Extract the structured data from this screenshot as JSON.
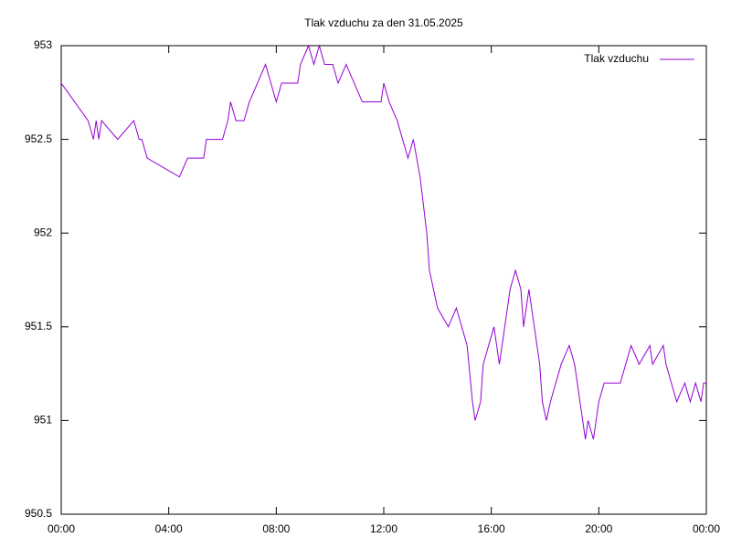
{
  "chart_data": {
    "type": "line",
    "title": "Tlak vzduchu za den 31.05.2025",
    "x": [
      0,
      0.5,
      1.0,
      1.2,
      1.3,
      1.4,
      1.5,
      2.1,
      2.7,
      2.9,
      3.0,
      3.2,
      4.4,
      4.7,
      4.8,
      5.3,
      5.4,
      6.0,
      6.2,
      6.3,
      6.5,
      6.8,
      7.0,
      7.3,
      7.6,
      7.8,
      8.0,
      8.2,
      8.8,
      8.9,
      9.2,
      9.4,
      9.6,
      9.8,
      10.1,
      10.3,
      10.6,
      10.9,
      11.2,
      11.9,
      12.0,
      12.2,
      12.5,
      12.7,
      12.9,
      13.1,
      13.35,
      13.6,
      13.7,
      14.0,
      14.4,
      14.7,
      15.1,
      15.3,
      15.4,
      15.6,
      15.7,
      15.9,
      16.1,
      16.3,
      16.5,
      16.7,
      16.9,
      17.1,
      17.2,
      17.4,
      17.6,
      17.8,
      17.9,
      18.05,
      18.2,
      18.4,
      18.6,
      18.9,
      19.1,
      19.3,
      19.5,
      19.6,
      19.8,
      20.0,
      20.2,
      20.8,
      21.0,
      21.2,
      21.5,
      21.9,
      22.0,
      22.4,
      22.5,
      22.7,
      22.9,
      23.2,
      23.4,
      23.6,
      23.8,
      23.9,
      24.0
    ],
    "series": [
      {
        "name": "Tlak vzduchu",
        "color": "#9400d3",
        "values": [
          952.8,
          952.7,
          952.6,
          952.5,
          952.6,
          952.5,
          952.6,
          952.5,
          952.6,
          952.5,
          952.5,
          952.4,
          952.3,
          952.4,
          952.4,
          952.4,
          952.5,
          952.5,
          952.6,
          952.7,
          952.6,
          952.6,
          952.7,
          952.8,
          952.9,
          952.8,
          952.7,
          952.8,
          952.8,
          952.9,
          953.0,
          952.9,
          953.0,
          952.9,
          952.9,
          952.8,
          952.9,
          952.8,
          952.7,
          952.7,
          952.8,
          952.7,
          952.6,
          952.5,
          952.4,
          952.5,
          952.3,
          952.0,
          951.8,
          951.6,
          951.5,
          951.6,
          951.4,
          951.1,
          951.0,
          951.1,
          951.3,
          951.4,
          951.5,
          951.3,
          951.5,
          951.7,
          951.8,
          951.7,
          951.5,
          951.7,
          951.5,
          951.3,
          951.1,
          951.0,
          951.1,
          951.2,
          951.3,
          951.4,
          951.3,
          951.1,
          950.9,
          951.0,
          950.9,
          951.1,
          951.2,
          951.2,
          951.3,
          951.4,
          951.3,
          951.4,
          951.3,
          951.4,
          951.3,
          951.2,
          951.1,
          951.2,
          951.1,
          951.2,
          951.1,
          951.2,
          951.2
        ]
      }
    ],
    "xlim": [
      0,
      24
    ],
    "xticks": [
      {
        "value": 0,
        "label": "00:00"
      },
      {
        "value": 4,
        "label": "04:00"
      },
      {
        "value": 8,
        "label": "08:00"
      },
      {
        "value": 12,
        "label": "12:00"
      },
      {
        "value": 16,
        "label": "16:00"
      },
      {
        "value": 20,
        "label": "20:00"
      },
      {
        "value": 24,
        "label": "00:00"
      }
    ],
    "ylim": [
      950.5,
      953
    ],
    "yticks": [
      950.5,
      951,
      951.5,
      952,
      952.5,
      953
    ],
    "legend": "top-right"
  }
}
